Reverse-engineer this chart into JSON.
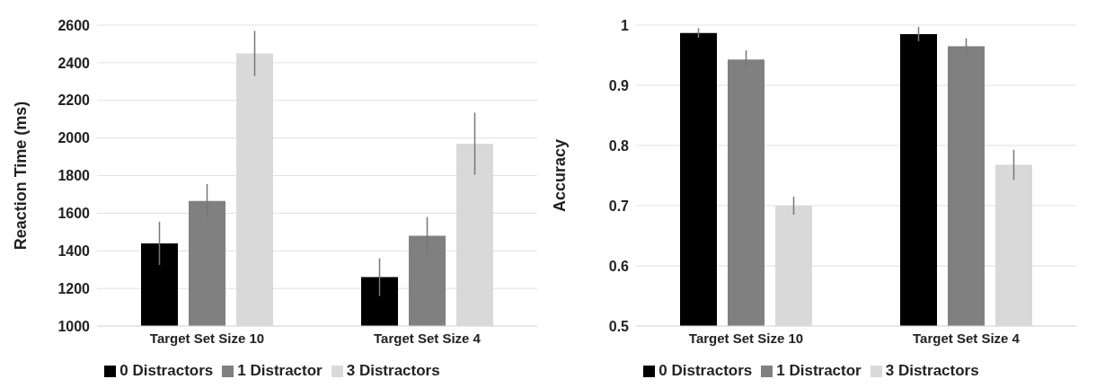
{
  "chart_data": [
    {
      "type": "bar",
      "ylabel": "Reaction Time (ms)",
      "categories": [
        "Target Set Size 10",
        "Target Set Size 4"
      ],
      "ylim": [
        1000,
        2600
      ],
      "yticks": [
        1000,
        1200,
        1400,
        1600,
        1800,
        2000,
        2200,
        2400,
        2600
      ],
      "grid": "y",
      "legend": "bottom",
      "series": [
        {
          "name": "0 Distractors",
          "color": "#000000",
          "values": [
            1440,
            1260
          ],
          "errors": [
            115,
            100
          ]
        },
        {
          "name": "1 Distractor",
          "color": "#808080",
          "values": [
            1665,
            1480
          ],
          "errors": [
            90,
            100
          ]
        },
        {
          "name": "3 Distractors",
          "color": "#d9d9d9",
          "values": [
            2450,
            1970
          ],
          "errors": [
            120,
            165
          ]
        }
      ]
    },
    {
      "type": "bar",
      "ylabel": "Accuracy",
      "categories": [
        "Target Set Size 10",
        "Target Set Size 4"
      ],
      "ylim": [
        0.5,
        1
      ],
      "yticks": [
        0.5,
        0.6,
        0.7,
        0.8,
        0.9,
        1
      ],
      "grid": "y",
      "legend": "bottom",
      "series": [
        {
          "name": "0 Distractors",
          "color": "#000000",
          "values": [
            0.987,
            0.985
          ],
          "errors": [
            0.008,
            0.012
          ]
        },
        {
          "name": "1 Distractor",
          "color": "#808080",
          "values": [
            0.943,
            0.965
          ],
          "errors": [
            0.015,
            0.013
          ]
        },
        {
          "name": "3 Distractors",
          "color": "#d9d9d9",
          "values": [
            0.7,
            0.768
          ],
          "errors": [
            0.015,
            0.025
          ]
        }
      ]
    }
  ]
}
